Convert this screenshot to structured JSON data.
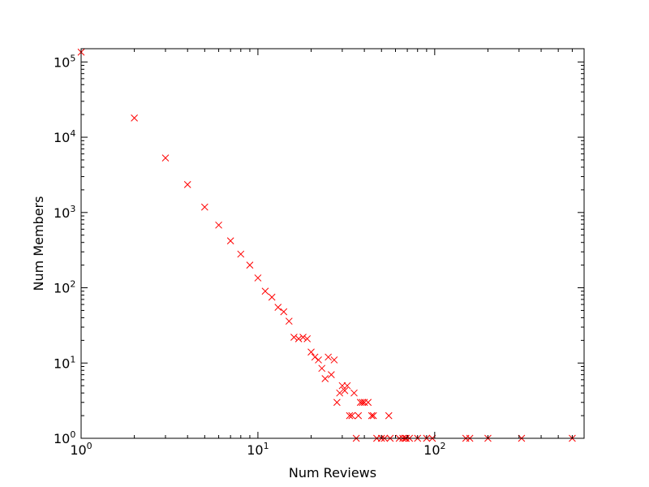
{
  "chart_data": {
    "type": "scatter",
    "title": "",
    "xlabel": "Num Reviews",
    "ylabel": "Num Members",
    "xscale": "log",
    "yscale": "log",
    "xlim": [
      1,
      700
    ],
    "ylim": [
      1,
      150000
    ],
    "grid": false,
    "marker": "x",
    "color": "#ff0000",
    "x_ticks": [
      {
        "value": 1,
        "base": "10",
        "exp": "0"
      },
      {
        "value": 10,
        "base": "10",
        "exp": "1"
      },
      {
        "value": 100,
        "base": "10",
        "exp": "2"
      }
    ],
    "y_ticks": [
      {
        "value": 1,
        "base": "10",
        "exp": "0"
      },
      {
        "value": 10,
        "base": "10",
        "exp": "1"
      },
      {
        "value": 100,
        "base": "10",
        "exp": "2"
      },
      {
        "value": 1000,
        "base": "10",
        "exp": "3"
      },
      {
        "value": 10000,
        "base": "10",
        "exp": "4"
      },
      {
        "value": 100000,
        "base": "10",
        "exp": "5"
      }
    ],
    "points": [
      [
        1,
        135000
      ],
      [
        2,
        18000
      ],
      [
        3,
        5300
      ],
      [
        4,
        2350
      ],
      [
        5,
        1180
      ],
      [
        6,
        680
      ],
      [
        7,
        420
      ],
      [
        8,
        280
      ],
      [
        9,
        200
      ],
      [
        10,
        135
      ],
      [
        11,
        90
      ],
      [
        12,
        75
      ],
      [
        13,
        55
      ],
      [
        14,
        48
      ],
      [
        15,
        36
      ],
      [
        16,
        22
      ],
      [
        17,
        21
      ],
      [
        18,
        22
      ],
      [
        19,
        21
      ],
      [
        20,
        14
      ],
      [
        21,
        12
      ],
      [
        22,
        11
      ],
      [
        23,
        8.5
      ],
      [
        24,
        6.2
      ],
      [
        25,
        12
      ],
      [
        26,
        7
      ],
      [
        27,
        11
      ],
      [
        28,
        3
      ],
      [
        29,
        4
      ],
      [
        30,
        5
      ],
      [
        31,
        4.3
      ],
      [
        32,
        5
      ],
      [
        33,
        2
      ],
      [
        34,
        2
      ],
      [
        35,
        4
      ],
      [
        36,
        1
      ],
      [
        37,
        2
      ],
      [
        38,
        3
      ],
      [
        39,
        3
      ],
      [
        40,
        3
      ],
      [
        42,
        3
      ],
      [
        44,
        2
      ],
      [
        45,
        2
      ],
      [
        47,
        1
      ],
      [
        50,
        1
      ],
      [
        52,
        1
      ],
      [
        55,
        2
      ],
      [
        56,
        1
      ],
      [
        63,
        1
      ],
      [
        66,
        1
      ],
      [
        68,
        1
      ],
      [
        69,
        1
      ],
      [
        72,
        1
      ],
      [
        80,
        1
      ],
      [
        90,
        1
      ],
      [
        97,
        1
      ],
      [
        150,
        1
      ],
      [
        158,
        1
      ],
      [
        200,
        1
      ],
      [
        310,
        1
      ],
      [
        600,
        1
      ]
    ]
  }
}
